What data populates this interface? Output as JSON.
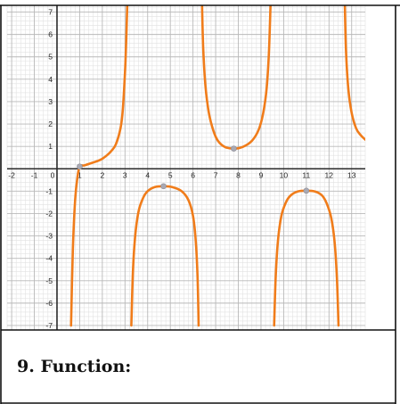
{
  "caption": "9. Function:",
  "colors": {
    "curve": "#f07c1a",
    "point": "#a9a9b3",
    "axis": "#2a2a2a",
    "grid_major": "#b9b9b9",
    "grid_minor": "#e2e2e2",
    "border": "#111111"
  },
  "chart_data": {
    "type": "line",
    "title": "",
    "xlabel": "",
    "ylabel": "",
    "xlim": [
      -2.2,
      13.6
    ],
    "ylim": [
      -7.2,
      7.3
    ],
    "x_ticks": [
      -2,
      -1,
      0,
      1,
      2,
      3,
      4,
      5,
      6,
      7,
      8,
      9,
      10,
      11,
      12,
      13
    ],
    "y_ticks": [
      -7,
      -6,
      -5,
      -4,
      -3,
      -2,
      -1,
      1,
      2,
      3,
      4,
      5,
      6,
      7
    ],
    "grid": true,
    "minor_grid_step": 0.2,
    "vertical_asymptotes": [
      0.5,
      3.2,
      6.3,
      9.5,
      12.6
    ],
    "series": [
      {
        "branch": 1,
        "x": [
          0.62,
          0.7,
          0.8,
          0.9,
          1.0,
          1.2,
          1.5,
          1.8,
          2.0,
          2.2,
          2.4,
          2.6,
          2.8,
          2.9,
          3.0,
          3.05,
          3.1
        ],
        "y": [
          -7.0,
          -3.6,
          -1.4,
          -0.4,
          0.1,
          0.15,
          0.25,
          0.35,
          0.45,
          0.6,
          0.8,
          1.1,
          1.8,
          2.6,
          4.3,
          5.6,
          7.3
        ]
      },
      {
        "branch": 2,
        "x": [
          3.28,
          3.35,
          3.45,
          3.6,
          3.8,
          4.0,
          4.3,
          4.7,
          5.1,
          5.5,
          5.8,
          6.0,
          6.12,
          6.2,
          6.25
        ],
        "y": [
          -7.0,
          -4.6,
          -3.0,
          -1.9,
          -1.3,
          -1.0,
          -0.82,
          -0.78,
          -0.82,
          -1.0,
          -1.4,
          -2.1,
          -3.2,
          -4.8,
          -7.0
        ]
      },
      {
        "branch": 3,
        "x": [
          6.4,
          6.45,
          6.55,
          6.7,
          6.9,
          7.1,
          7.4,
          7.8,
          8.2,
          8.6,
          8.9,
          9.1,
          9.25,
          9.35,
          9.42
        ],
        "y": [
          7.3,
          5.4,
          3.7,
          2.5,
          1.7,
          1.25,
          0.98,
          0.9,
          0.98,
          1.25,
          1.75,
          2.5,
          3.6,
          5.2,
          7.3
        ]
      },
      {
        "branch": 4,
        "x": [
          9.58,
          9.65,
          9.75,
          9.9,
          10.1,
          10.3,
          10.6,
          11.0,
          11.4,
          11.7,
          11.9,
          12.1,
          12.25,
          12.35,
          12.42
        ],
        "y": [
          -7.0,
          -4.8,
          -3.2,
          -2.1,
          -1.5,
          -1.2,
          -1.02,
          -0.98,
          -1.02,
          -1.2,
          -1.55,
          -2.2,
          -3.3,
          -4.9,
          -7.0
        ]
      },
      {
        "branch": 5,
        "x": [
          12.7,
          12.75,
          12.85,
          13.0,
          13.2,
          13.4,
          13.6
        ],
        "y": [
          7.3,
          5.3,
          3.6,
          2.5,
          1.8,
          1.5,
          1.3
        ]
      }
    ],
    "points": [
      {
        "x": 1.0,
        "y": 0.1
      },
      {
        "x": 4.7,
        "y": -0.78
      },
      {
        "x": 7.8,
        "y": 0.9
      },
      {
        "x": 11.0,
        "y": -0.98
      }
    ]
  }
}
